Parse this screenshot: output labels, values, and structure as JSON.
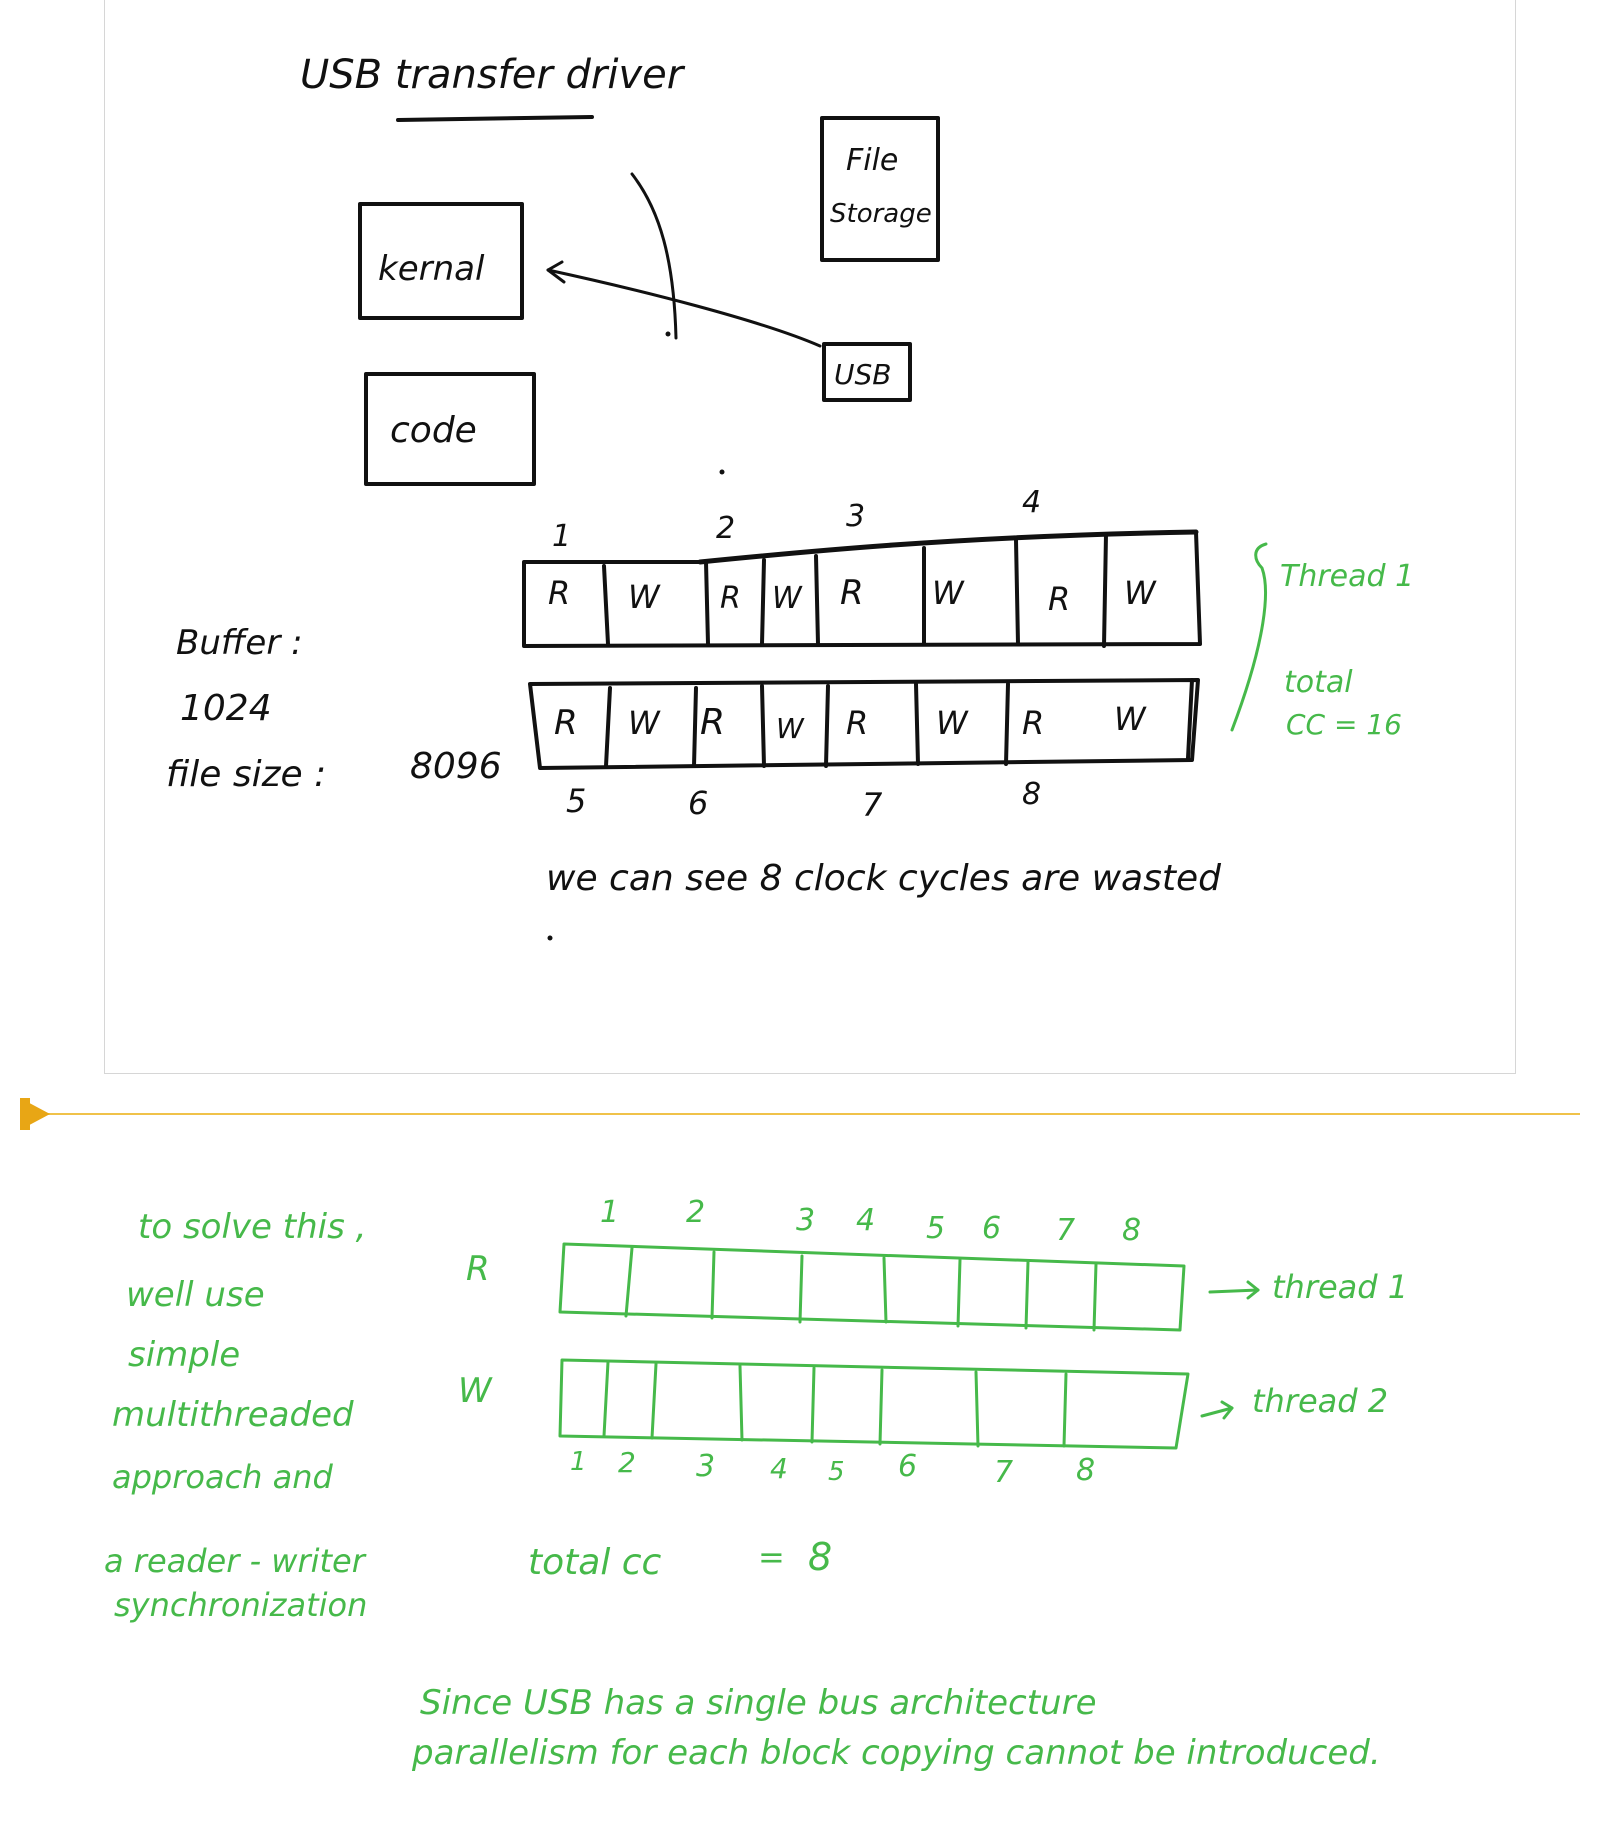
{
  "page": {
    "title": "USB transfer driver"
  },
  "top_diagram": {
    "boxes": {
      "kernal": "kernal",
      "code": "code",
      "file_storage_line1": "File",
      "file_storage_line2": "Storage",
      "usb": "USB"
    },
    "buffer_label": "Buffer :",
    "buffer_value": "1024",
    "file_size_label": "file size :",
    "file_size_value": "8096",
    "thread1_label": "Thread 1",
    "total_line1": "total",
    "total_line2": "CC = 16",
    "wasted_note": "we can see 8 clock cycles are wasted",
    "row1_cells": [
      "R",
      "W",
      "R",
      "W",
      "R",
      "W",
      "R",
      "W"
    ],
    "row2_cells": [
      "R",
      "W",
      "R",
      "W",
      "R",
      "W",
      "R",
      "W"
    ],
    "row1_numbers": [
      "1",
      "2",
      "3",
      "4"
    ],
    "row2_numbers": [
      "5",
      "6",
      "7",
      "8"
    ]
  },
  "bottom_diagram": {
    "note_lines": [
      "to solve this ,",
      "well use",
      "simple",
      "multithreaded",
      "approach and",
      "a reader - writer",
      "synchronization"
    ],
    "row_r_label": "R",
    "row_w_label": "W",
    "top_numbers": [
      "1",
      "2",
      "3",
      "4",
      "5",
      "6",
      "7",
      "8"
    ],
    "bottom_numbers": [
      "1",
      "2",
      "3",
      "4",
      "5",
      "6",
      "7",
      "8"
    ],
    "thread1": "thread 1",
    "thread2": "thread 2",
    "total_label": "total cc",
    "total_eq": "=",
    "total_value": "8",
    "conclusion_line1": "Since USB has a single bus architecture",
    "conclusion_line2": "parallelism for each block copying cannot be introduced."
  },
  "colors": {
    "ink": "#111111",
    "green_ink": "#46b94a",
    "divider": "#f0c24a",
    "marker": "#e8a615"
  }
}
